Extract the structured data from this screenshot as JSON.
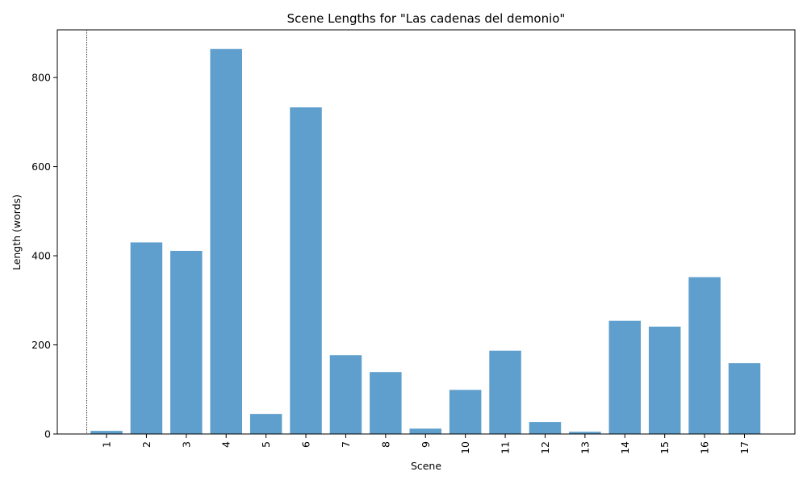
{
  "chart_data": {
    "type": "bar",
    "title": "Scene Lengths for \"Las cadenas del demonio\"",
    "xlabel": "Scene",
    "ylabel": "Length (words)",
    "categories": [
      "1",
      "2",
      "3",
      "4",
      "5",
      "6",
      "7",
      "8",
      "9",
      "10",
      "11",
      "12",
      "13",
      "14",
      "15",
      "16",
      "17"
    ],
    "values": [
      7,
      430,
      411,
      864,
      45,
      733,
      177,
      139,
      12,
      99,
      187,
      27,
      5,
      254,
      241,
      352,
      159
    ],
    "ylim": [
      0,
      907
    ],
    "yticks": [
      0,
      200,
      400,
      600,
      800
    ],
    "bar_color": "#5f9fcd",
    "grid": false,
    "legend": "none",
    "reference_line": "dashed vertical line at left of scene 1"
  }
}
